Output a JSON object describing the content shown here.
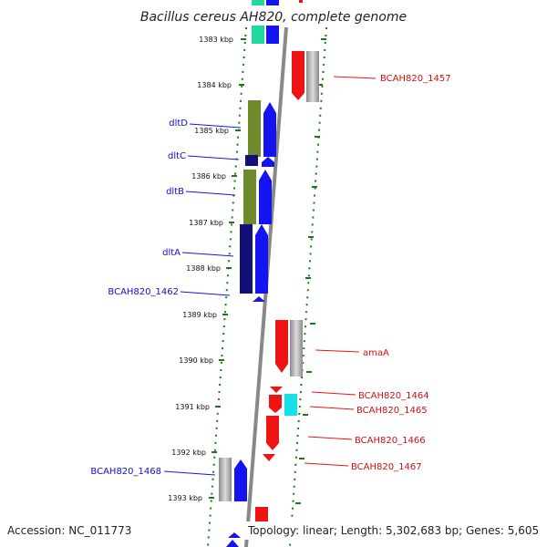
{
  "title": "Bacillus cereus AH820, complete genome",
  "footer": {
    "accession": "Accession: NC_011773",
    "summary": "Topology: linear; Length: 5,302,683 bp; Genes: 5,605"
  },
  "ruler_ticks": [
    "1383 kbp",
    "1384 kbp",
    "1385 kbp",
    "1386 kbp",
    "1387 kbp",
    "1388 kbp",
    "1389 kbp",
    "1390 kbp",
    "1391 kbp",
    "1392 kbp",
    "1393 kbp"
  ],
  "genes_left": [
    "dltD",
    "dltC",
    "dltB",
    "dltA",
    "BCAH820_1462",
    "BCAH820_1468"
  ],
  "genes_right": [
    "BCAH820_1457",
    "amaA",
    "BCAH820_1464",
    "BCAH820_1465",
    "BCAH820_1466",
    "BCAH820_1467"
  ],
  "colors": {
    "backbone": "#888888",
    "tick": "#1a7a1a",
    "forward": "#1414f0",
    "reverse": "#ee1414",
    "olive": "#6f8a2a",
    "navy": "#101078",
    "teal": "#22d8a0",
    "cyan": "#18e0e8",
    "grey": "#b0b0b0"
  }
}
